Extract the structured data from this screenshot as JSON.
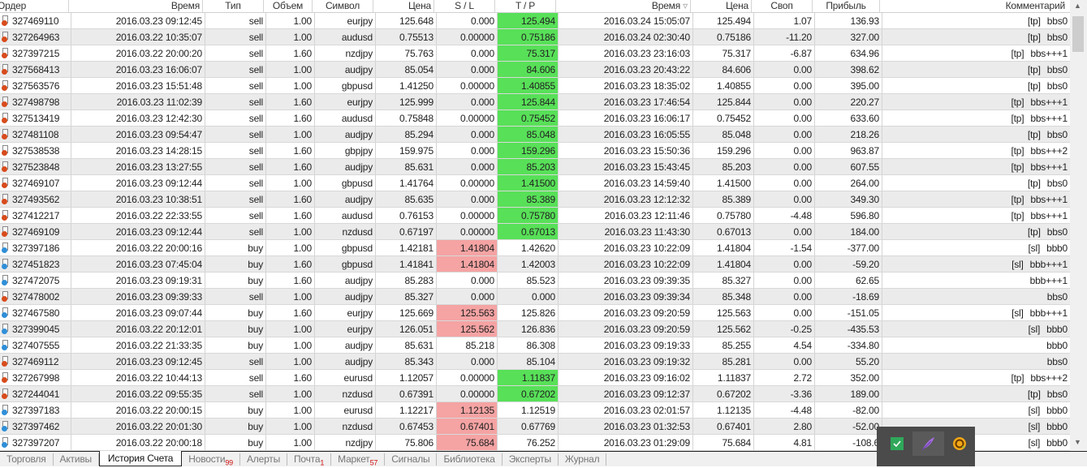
{
  "columns": [
    "Ордер",
    "Время",
    "Тип",
    "Объем",
    "Символ",
    "Цена",
    "S / L",
    "T / P",
    "Время",
    "Цена",
    "Своп",
    "Прибыль",
    "Комментарий"
  ],
  "sort_icon": "sort-desc-icon",
  "colors": {
    "tp_highlight": "#58e058",
    "sl_highlight": "#f5a3a3",
    "sell": "#d84b1c",
    "buy": "#2f8fd8"
  },
  "rows": [
    {
      "order": "327469110",
      "time": "2016.03.23 09:12:45",
      "type": "sell",
      "volume": "1.00",
      "symbol": "eurjpy",
      "price": "125.648",
      "sl": "0.000",
      "tp": "125.494",
      "close_time": "2016.03.24 15:05:07",
      "close_price": "125.494",
      "swap": "1.07",
      "profit": "136.93",
      "tag": "[tp]",
      "comment": "bbs0",
      "hl": "tp"
    },
    {
      "order": "327264963",
      "time": "2016.03.22 10:35:07",
      "type": "sell",
      "volume": "1.00",
      "symbol": "audusd",
      "price": "0.75513",
      "sl": "0.00000",
      "tp": "0.75186",
      "close_time": "2016.03.24 02:30:40",
      "close_price": "0.75186",
      "swap": "-11.20",
      "profit": "327.00",
      "tag": "[tp]",
      "comment": "bbs0",
      "hl": "tp"
    },
    {
      "order": "327397215",
      "time": "2016.03.22 20:00:20",
      "type": "sell",
      "volume": "1.60",
      "symbol": "nzdjpy",
      "price": "75.763",
      "sl": "0.000",
      "tp": "75.317",
      "close_time": "2016.03.23 23:16:03",
      "close_price": "75.317",
      "swap": "-6.87",
      "profit": "634.96",
      "tag": "[tp]",
      "comment": "bbs+++1",
      "hl": "tp"
    },
    {
      "order": "327568413",
      "time": "2016.03.23 16:06:07",
      "type": "sell",
      "volume": "1.00",
      "symbol": "audjpy",
      "price": "85.054",
      "sl": "0.000",
      "tp": "84.606",
      "close_time": "2016.03.23 20:43:22",
      "close_price": "84.606",
      "swap": "0.00",
      "profit": "398.62",
      "tag": "[tp]",
      "comment": "bbs0",
      "hl": "tp"
    },
    {
      "order": "327563576",
      "time": "2016.03.23 15:51:48",
      "type": "sell",
      "volume": "1.00",
      "symbol": "gbpusd",
      "price": "1.41250",
      "sl": "0.00000",
      "tp": "1.40855",
      "close_time": "2016.03.23 18:35:02",
      "close_price": "1.40855",
      "swap": "0.00",
      "profit": "395.00",
      "tag": "[tp]",
      "comment": "bbs0",
      "hl": "tp"
    },
    {
      "order": "327498798",
      "time": "2016.03.23 11:02:39",
      "type": "sell",
      "volume": "1.60",
      "symbol": "eurjpy",
      "price": "125.999",
      "sl": "0.000",
      "tp": "125.844",
      "close_time": "2016.03.23 17:46:54",
      "close_price": "125.844",
      "swap": "0.00",
      "profit": "220.27",
      "tag": "[tp]",
      "comment": "bbs+++1",
      "hl": "tp"
    },
    {
      "order": "327513419",
      "time": "2016.03.23 12:42:30",
      "type": "sell",
      "volume": "1.60",
      "symbol": "audusd",
      "price": "0.75848",
      "sl": "0.00000",
      "tp": "0.75452",
      "close_time": "2016.03.23 16:06:17",
      "close_price": "0.75452",
      "swap": "0.00",
      "profit": "633.60",
      "tag": "[tp]",
      "comment": "bbs+++1",
      "hl": "tp"
    },
    {
      "order": "327481108",
      "time": "2016.03.23 09:54:47",
      "type": "sell",
      "volume": "1.00",
      "symbol": "audjpy",
      "price": "85.294",
      "sl": "0.000",
      "tp": "85.048",
      "close_time": "2016.03.23 16:05:55",
      "close_price": "85.048",
      "swap": "0.00",
      "profit": "218.26",
      "tag": "[tp]",
      "comment": "bbs0",
      "hl": "tp"
    },
    {
      "order": "327538538",
      "time": "2016.03.23 14:28:15",
      "type": "sell",
      "volume": "1.60",
      "symbol": "gbpjpy",
      "price": "159.975",
      "sl": "0.000",
      "tp": "159.296",
      "close_time": "2016.03.23 15:50:36",
      "close_price": "159.296",
      "swap": "0.00",
      "profit": "963.87",
      "tag": "[tp]",
      "comment": "bbs+++2",
      "hl": "tp"
    },
    {
      "order": "327523848",
      "time": "2016.03.23 13:27:55",
      "type": "sell",
      "volume": "1.60",
      "symbol": "audjpy",
      "price": "85.631",
      "sl": "0.000",
      "tp": "85.203",
      "close_time": "2016.03.23 15:43:45",
      "close_price": "85.203",
      "swap": "0.00",
      "profit": "607.55",
      "tag": "[tp]",
      "comment": "bbs+++1",
      "hl": "tp"
    },
    {
      "order": "327469107",
      "time": "2016.03.23 09:12:44",
      "type": "sell",
      "volume": "1.00",
      "symbol": "gbpusd",
      "price": "1.41764",
      "sl": "0.00000",
      "tp": "1.41500",
      "close_time": "2016.03.23 14:59:40",
      "close_price": "1.41500",
      "swap": "0.00",
      "profit": "264.00",
      "tag": "[tp]",
      "comment": "bbs0",
      "hl": "tp"
    },
    {
      "order": "327493562",
      "time": "2016.03.23 10:38:51",
      "type": "sell",
      "volume": "1.60",
      "symbol": "audjpy",
      "price": "85.635",
      "sl": "0.000",
      "tp": "85.389",
      "close_time": "2016.03.23 12:12:32",
      "close_price": "85.389",
      "swap": "0.00",
      "profit": "349.30",
      "tag": "[tp]",
      "comment": "bbs+++1",
      "hl": "tp"
    },
    {
      "order": "327412217",
      "time": "2016.03.22 22:33:55",
      "type": "sell",
      "volume": "1.60",
      "symbol": "audusd",
      "price": "0.76153",
      "sl": "0.00000",
      "tp": "0.75780",
      "close_time": "2016.03.23 12:11:46",
      "close_price": "0.75780",
      "swap": "-4.48",
      "profit": "596.80",
      "tag": "[tp]",
      "comment": "bbs+++1",
      "hl": "tp"
    },
    {
      "order": "327469109",
      "time": "2016.03.23 09:12:44",
      "type": "sell",
      "volume": "1.00",
      "symbol": "nzdusd",
      "price": "0.67197",
      "sl": "0.00000",
      "tp": "0.67013",
      "close_time": "2016.03.23 11:43:30",
      "close_price": "0.67013",
      "swap": "0.00",
      "profit": "184.00",
      "tag": "[tp]",
      "comment": "bbs0",
      "hl": "tp"
    },
    {
      "order": "327397186",
      "time": "2016.03.22 20:00:16",
      "type": "buy",
      "volume": "1.00",
      "symbol": "gbpusd",
      "price": "1.42181",
      "sl": "1.41804",
      "tp": "1.42620",
      "close_time": "2016.03.23 10:22:09",
      "close_price": "1.41804",
      "swap": "-1.54",
      "profit": "-377.00",
      "tag": "[sl]",
      "comment": "bbb0",
      "hl": "sl"
    },
    {
      "order": "327451823",
      "time": "2016.03.23 07:45:04",
      "type": "buy",
      "volume": "1.60",
      "symbol": "gbpusd",
      "price": "1.41841",
      "sl": "1.41804",
      "tp": "1.42003",
      "close_time": "2016.03.23 10:22:09",
      "close_price": "1.41804",
      "swap": "0.00",
      "profit": "-59.20",
      "tag": "[sl]",
      "comment": "bbb+++1",
      "hl": "sl"
    },
    {
      "order": "327472075",
      "time": "2016.03.23 09:19:31",
      "type": "buy",
      "volume": "1.60",
      "symbol": "audjpy",
      "price": "85.283",
      "sl": "0.000",
      "tp": "85.523",
      "close_time": "2016.03.23 09:39:35",
      "close_price": "85.327",
      "swap": "0.00",
      "profit": "62.65",
      "tag": "",
      "comment": "bbb+++1",
      "hl": ""
    },
    {
      "order": "327478002",
      "time": "2016.03.23 09:39:33",
      "type": "sell",
      "volume": "1.00",
      "symbol": "audjpy",
      "price": "85.327",
      "sl": "0.000",
      "tp": "0.000",
      "close_time": "2016.03.23 09:39:34",
      "close_price": "85.348",
      "swap": "0.00",
      "profit": "-18.69",
      "tag": "",
      "comment": "bbs0",
      "hl": ""
    },
    {
      "order": "327467580",
      "time": "2016.03.23 09:07:44",
      "type": "buy",
      "volume": "1.60",
      "symbol": "eurjpy",
      "price": "125.669",
      "sl": "125.563",
      "tp": "125.826",
      "close_time": "2016.03.23 09:20:59",
      "close_price": "125.563",
      "swap": "0.00",
      "profit": "-151.05",
      "tag": "[sl]",
      "comment": "bbb+++1",
      "hl": "sl"
    },
    {
      "order": "327399045",
      "time": "2016.03.22 20:12:01",
      "type": "buy",
      "volume": "1.00",
      "symbol": "eurjpy",
      "price": "126.051",
      "sl": "125.562",
      "tp": "126.836",
      "close_time": "2016.03.23 09:20:59",
      "close_price": "125.562",
      "swap": "-0.25",
      "profit": "-435.53",
      "tag": "[sl]",
      "comment": "bbb0",
      "hl": "sl"
    },
    {
      "order": "327407555",
      "time": "2016.03.22 21:33:35",
      "type": "buy",
      "volume": "1.00",
      "symbol": "audjpy",
      "price": "85.631",
      "sl": "85.218",
      "tp": "86.308",
      "close_time": "2016.03.23 09:19:33",
      "close_price": "85.255",
      "swap": "4.54",
      "profit": "-334.80",
      "tag": "",
      "comment": "bbb0",
      "hl": ""
    },
    {
      "order": "327469112",
      "time": "2016.03.23 09:12:45",
      "type": "sell",
      "volume": "1.00",
      "symbol": "audjpy",
      "price": "85.343",
      "sl": "0.000",
      "tp": "85.104",
      "close_time": "2016.03.23 09:19:32",
      "close_price": "85.281",
      "swap": "0.00",
      "profit": "55.20",
      "tag": "",
      "comment": "bbs0",
      "hl": ""
    },
    {
      "order": "327267998",
      "time": "2016.03.22 10:44:13",
      "type": "sell",
      "volume": "1.60",
      "symbol": "eurusd",
      "price": "1.12057",
      "sl": "0.00000",
      "tp": "1.11837",
      "close_time": "2016.03.23 09:16:02",
      "close_price": "1.11837",
      "swap": "2.72",
      "profit": "352.00",
      "tag": "[tp]",
      "comment": "bbs+++2",
      "hl": "tp"
    },
    {
      "order": "327244041",
      "time": "2016.03.22 09:55:35",
      "type": "sell",
      "volume": "1.00",
      "symbol": "nzdusd",
      "price": "0.67391",
      "sl": "0.00000",
      "tp": "0.67202",
      "close_time": "2016.03.23 09:12:37",
      "close_price": "0.67202",
      "swap": "-3.36",
      "profit": "189.00",
      "tag": "[tp]",
      "comment": "bbs0",
      "hl": "tp"
    },
    {
      "order": "327397183",
      "time": "2016.03.22 20:00:15",
      "type": "buy",
      "volume": "1.00",
      "symbol": "eurusd",
      "price": "1.12217",
      "sl": "1.12135",
      "tp": "1.12519",
      "close_time": "2016.03.23 02:01:57",
      "close_price": "1.12135",
      "swap": "-4.48",
      "profit": "-82.00",
      "tag": "[sl]",
      "comment": "bbb0",
      "hl": "sl"
    },
    {
      "order": "327397462",
      "time": "2016.03.22 20:01:30",
      "type": "buy",
      "volume": "1.00",
      "symbol": "nzdusd",
      "price": "0.67453",
      "sl": "0.67401",
      "tp": "0.67769",
      "close_time": "2016.03.23 01:32:53",
      "close_price": "0.67401",
      "swap": "2.80",
      "profit": "-52.00",
      "tag": "[sl]",
      "comment": "bbb0",
      "hl": "sl"
    },
    {
      "order": "327397207",
      "time": "2016.03.22 20:00:18",
      "type": "buy",
      "volume": "1.00",
      "symbol": "nzdjpy",
      "price": "75.806",
      "sl": "75.684",
      "tp": "76.252",
      "close_time": "2016.03.23 01:29:09",
      "close_price": "75.684",
      "swap": "4.81",
      "profit": "-108.6",
      "tag": "[sl]",
      "comment": "bbb0",
      "hl": "sl"
    }
  ],
  "tabs": [
    {
      "label": "Торговля",
      "badge": ""
    },
    {
      "label": "Активы",
      "badge": ""
    },
    {
      "label": "История Счета",
      "badge": "",
      "active": true
    },
    {
      "label": "Новости",
      "badge": "99"
    },
    {
      "label": "Алерты",
      "badge": ""
    },
    {
      "label": "Почта",
      "badge": "1"
    },
    {
      "label": "Маркет",
      "badge": "57"
    },
    {
      "label": "Сигналы",
      "badge": ""
    },
    {
      "label": "Библиотека",
      "badge": ""
    },
    {
      "label": "Эксперты",
      "badge": ""
    },
    {
      "label": "Журнал",
      "badge": ""
    }
  ],
  "tray_popup": {
    "icons": [
      "green-check-icon",
      "purple-feather-icon",
      "orange-refresh-icon"
    ]
  }
}
